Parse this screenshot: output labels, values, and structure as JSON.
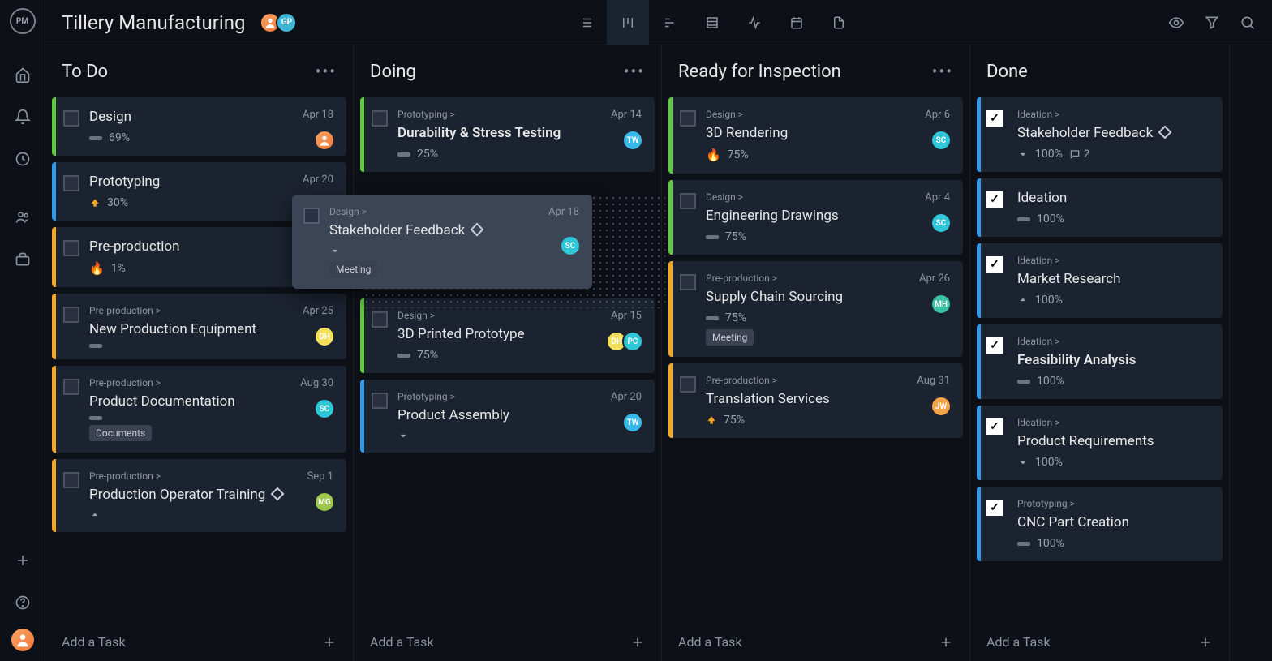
{
  "project_title": "Tillery Manufacturing",
  "team": [
    {
      "initials": "",
      "bg": "linear-gradient(135deg,#f9a364,#f07838)"
    },
    {
      "initials": "GP",
      "bg": "#3fb6d6"
    }
  ],
  "colors": {
    "green": "#5eca3c",
    "blue": "#3199e8",
    "orange": "#f5a623",
    "red": "#e74c3c",
    "cyan": "#2dc7d8",
    "teal": "#3fb6d6"
  },
  "columns": [
    {
      "title": "To Do",
      "cards": [
        {
          "accent": "#5eca3c",
          "title": "Design",
          "date": "Apr 18",
          "pct": "69%",
          "avatars": [
            {
              "t": "",
              "bg": "linear-gradient(135deg,#f9a364,#f07838)"
            }
          ],
          "icon": "dash"
        },
        {
          "accent": "#3199e8",
          "title": "Prototyping",
          "date": "Apr 20",
          "pct": "30%",
          "icon": "up-orange"
        },
        {
          "accent": "#f5a623",
          "title": "Pre-production",
          "pct": "1%",
          "icon": "fire"
        },
        {
          "accent": "#f5a623",
          "parent": "Pre-production >",
          "title": "New Production Equipment",
          "date": "Apr 25",
          "icon": "dash",
          "avatars": [
            {
              "t": "DH",
              "bg": "#f3e05a"
            }
          ]
        },
        {
          "accent": "#f5a623",
          "parent": "Pre-production >",
          "title": "Product Documentation",
          "date": "Aug 30",
          "icon": "dash",
          "avatars": [
            {
              "t": "SC",
              "bg": "#2dc7d8"
            }
          ],
          "tag": "Documents"
        },
        {
          "accent": "#f5a623",
          "parent": "Pre-production >",
          "title": "Production Operator Training",
          "date": "Sep 1",
          "icon": "up-grey",
          "milestone": true,
          "avatars": [
            {
              "t": "MG",
              "bg": "#9dc84a"
            }
          ]
        }
      ],
      "add": "Add a Task"
    },
    {
      "title": "Doing",
      "cards": [
        {
          "accent": "#5eca3c",
          "parent": "Prototyping >",
          "title": "Durability & Stress Testing",
          "bold": true,
          "date": "Apr 14",
          "pct": "25%",
          "icon": "dash",
          "avatars": [
            {
              "t": "TW",
              "bg": "#36b8e8"
            }
          ]
        },
        {
          "drop": true
        },
        {
          "accent": "#5eca3c",
          "parent": "Design >",
          "title": "3D Printed Prototype",
          "date": "Apr 15",
          "pct": "75%",
          "icon": "dash",
          "avatars": [
            {
              "t": "DH",
              "bg": "#f3e05a"
            },
            {
              "t": "PC",
              "bg": "#2dc7d8"
            }
          ]
        },
        {
          "accent": "#3199e8",
          "parent": "Prototyping >",
          "title": "Product Assembly",
          "date": "Apr 20",
          "icon": "down-grey",
          "avatars": [
            {
              "t": "TW",
              "bg": "#36b8e8"
            }
          ]
        }
      ],
      "add": "Add a Task"
    },
    {
      "title": "Ready for Inspection",
      "cards": [
        {
          "accent": "#5eca3c",
          "parent": "Design >",
          "title": "3D Rendering",
          "date": "Apr 6",
          "pct": "75%",
          "icon": "fire",
          "avatars": [
            {
              "t": "SC",
              "bg": "#2dc7d8"
            }
          ]
        },
        {
          "accent": "#5eca3c",
          "parent": "Design >",
          "title": "Engineering Drawings",
          "date": "Apr 4",
          "pct": "75%",
          "icon": "dash",
          "avatars": [
            {
              "t": "SC",
              "bg": "#2dc7d8"
            }
          ]
        },
        {
          "accent": "#f5a623",
          "parent": "Pre-production >",
          "title": "Supply Chain Sourcing",
          "date": "Apr 26",
          "pct": "75%",
          "icon": "dash",
          "avatars": [
            {
              "t": "MH",
              "bg": "#3bbfa5"
            }
          ],
          "tag": "Meeting"
        },
        {
          "accent": "#f5a623",
          "parent": "Pre-production >",
          "title": "Translation Services",
          "date": "Aug 31",
          "pct": "75%",
          "icon": "up-orange",
          "avatars": [
            {
              "t": "JW",
              "bg": "#f5a34a"
            }
          ]
        }
      ],
      "add": "Add a Task"
    },
    {
      "title": "Done",
      "done": true,
      "cards": [
        {
          "accent": "#3199e8",
          "parent": "Ideation >",
          "title": "Stakeholder Feedback",
          "pct": "100%",
          "icon": "down-grey",
          "milestone": true,
          "comments": "2"
        },
        {
          "accent": "#3199e8",
          "title": "Ideation",
          "pct": "100%",
          "icon": "dash"
        },
        {
          "accent": "#3199e8",
          "parent": "Ideation >",
          "title": "Market Research",
          "pct": "100%",
          "icon": "up-grey"
        },
        {
          "accent": "#3199e8",
          "parent": "Ideation >",
          "title": "Feasibility Analysis",
          "bold": true,
          "pct": "100%",
          "icon": "dash"
        },
        {
          "accent": "#3199e8",
          "parent": "Ideation >",
          "title": "Product Requirements",
          "pct": "100%",
          "icon": "down-grey"
        },
        {
          "accent": "#3199e8",
          "parent": "Prototyping >",
          "title": "CNC Part Creation",
          "pct": "100%",
          "icon": "dash"
        }
      ],
      "add": "Add a Task"
    }
  ],
  "dragging": {
    "parent": "Design >",
    "title": "Stakeholder Feedback",
    "date": "Apr 18",
    "tag": "Meeting",
    "avatar": {
      "t": "SC",
      "bg": "#2dc7d8"
    },
    "milestone": true
  }
}
